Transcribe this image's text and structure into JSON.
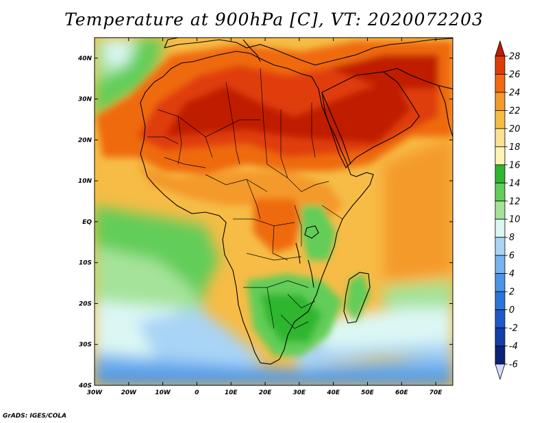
{
  "title": "Temperature at 900hPa [C], VT: 2020072203",
  "credit": "GrADS: IGES/COLA",
  "map": {
    "projection": "lat-lon",
    "lon_range": [
      -30,
      75
    ],
    "lat_range": [
      -40,
      45
    ],
    "lat_labels": [
      "40N",
      "30N",
      "20N",
      "10N",
      "EQ",
      "10S",
      "20S",
      "30S",
      "40S"
    ],
    "lat_values": [
      40,
      30,
      20,
      10,
      0,
      -10,
      -20,
      -30,
      -40
    ],
    "lon_labels": [
      "30W",
      "20W",
      "10W",
      "0",
      "10E",
      "20E",
      "30E",
      "40E",
      "50E",
      "60E",
      "70E"
    ],
    "lon_values": [
      -30,
      -20,
      -10,
      0,
      10,
      20,
      30,
      40,
      50,
      60,
      70
    ]
  },
  "colorbar": {
    "labels": [
      "28",
      "26",
      "24",
      "22",
      "20",
      "18",
      "16",
      "14",
      "12",
      "10",
      "8",
      "6",
      "4",
      "2",
      "0",
      "-2",
      "-4",
      "-6"
    ],
    "colors": [
      "#c01a00",
      "#e03c0a",
      "#ef6a10",
      "#f49a2c",
      "#f6bc46",
      "#fbe191",
      "#fdf4b6",
      "#2fb62f",
      "#62cd58",
      "#a5e39a",
      "#dbf7f4",
      "#a9d4f6",
      "#76b3ef",
      "#4b95e6",
      "#2b75da",
      "#1f59c7",
      "#1340a8",
      "#0b2376",
      "#000050"
    ],
    "extend_color_low": "#d8dcff"
  }
}
